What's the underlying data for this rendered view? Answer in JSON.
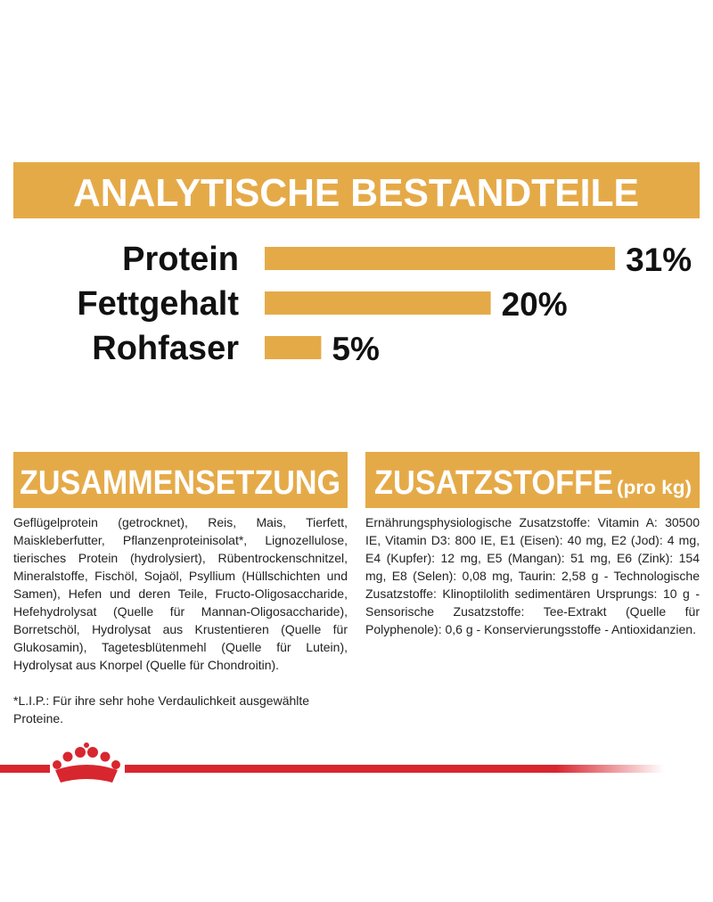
{
  "header": {
    "title": "ANALYTISCHE BESTANDTEILE"
  },
  "chart_data": {
    "type": "bar",
    "orientation": "horizontal",
    "color": "#e5aa48",
    "categories": [
      "Protein",
      "Fettgehalt",
      "Rohfaser"
    ],
    "values": [
      31,
      20,
      5
    ],
    "value_labels": [
      "31%",
      "20%",
      "5%"
    ]
  },
  "sections": [
    {
      "title": "ZUSAMMENSETZUNG",
      "text": "Geflügelprotein (getrocknet), Reis, Mais, Tierfett, Maiskleberfutter, Pflanzenproteinisolat*, Lignozellulose, tierisches Protein (hydrolysiert), Rübentrockenschnitzel, Mineralstoffe, Fischöl, Sojaöl, Psyllium (Hüllschichten und Samen), Hefen und deren Teile, Fructo-Oligosaccharide, Hefehydrolysat (Quelle für Mannan-Oligosaccharide), Borretschöl, Hydrolysat aus Krustentieren (Quelle für Glukosamin), Tagetesblütenmehl (Quelle für Lutein), Hydrolysat aus Knorpel (Quelle für Chondroitin).",
      "note": "*L.I.P.: Für ihre sehr hohe Verdaulichkeit ausgewählte Proteine."
    },
    {
      "title": "ZUSATZSTOFFE",
      "title_suffix": "(pro kg)",
      "text": "Ernährungsphysiologische Zusatzstoffe: Vitamin A: 30500 IE, Vitamin D3: 800 IE, E1 (Eisen): 40 mg, E2 (Jod): 4 mg, E4 (Kupfer): 12 mg, E5 (Mangan): 51 mg, E6 (Zink): 154 mg, E8 (Selen): 0,08 mg, Taurin: 2,58 g - Technologische Zusatzstoffe: Klinoptilolith sedimentären Ursprungs: 10 g - Sensorische Zusatzstoffe: Tee-Extrakt (Quelle für Polyphenole): 0,6 g - Konservierungsstoffe - Antioxidanzien."
    }
  ]
}
